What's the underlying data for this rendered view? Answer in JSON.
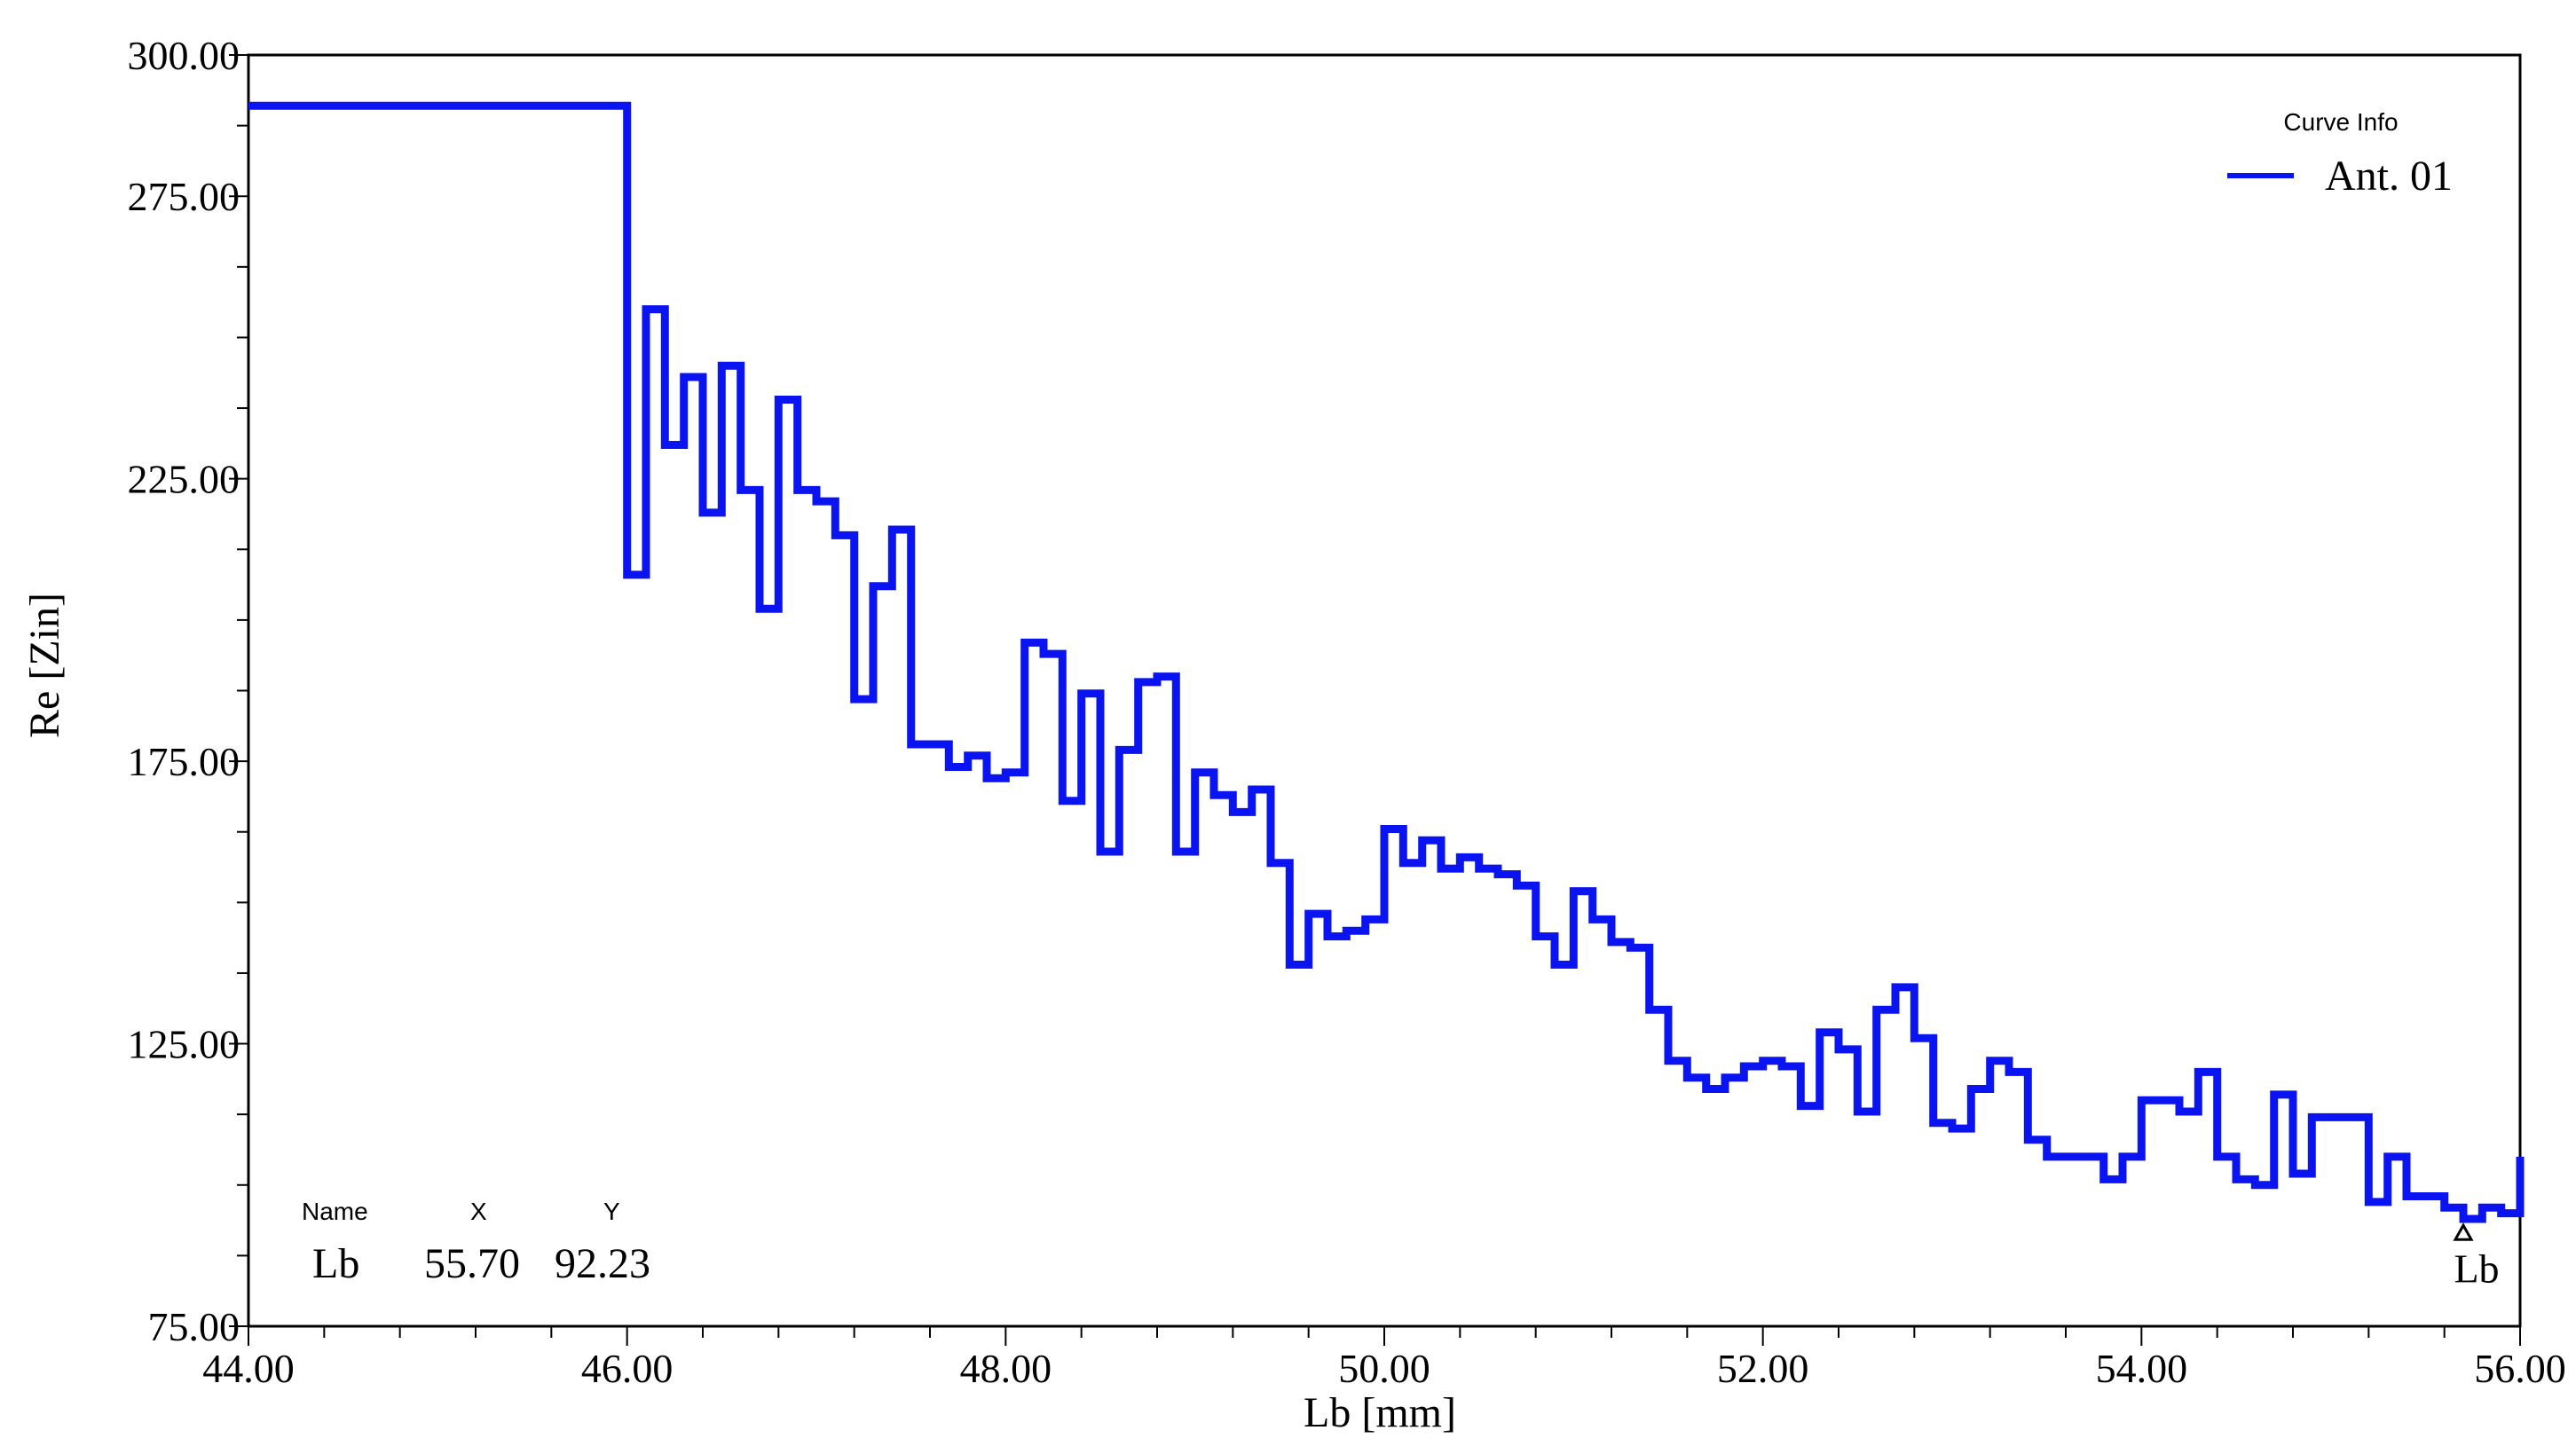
{
  "chart_data": {
    "type": "line",
    "step": true,
    "xlabel": "Lb [mm]",
    "ylabel": "Re [Zin]",
    "xlim": [
      44,
      56
    ],
    "ylim": [
      75,
      300
    ],
    "x_ticks": [
      "44.00",
      "46.00",
      "48.00",
      "50.00",
      "52.00",
      "54.00",
      "56.00"
    ],
    "y_ticks": [
      "75.00",
      "125.00",
      "175.00",
      "225.00",
      "275.00",
      "300.00"
    ],
    "grid": false,
    "legend": {
      "title": "Curve Info",
      "position": "top-right",
      "entries": [
        {
          "name": "Ant. 01",
          "color": "#0a14f0"
        }
      ]
    },
    "series": [
      {
        "name": "Ant. 01",
        "color": "#0a14f0",
        "x": [
          44.0,
          46.0,
          46.1,
          46.2,
          46.3,
          46.4,
          46.5,
          46.6,
          46.7,
          46.8,
          46.9,
          47.0,
          47.1,
          47.2,
          47.3,
          47.4,
          47.5,
          47.6,
          47.7,
          47.8,
          47.9,
          48.0,
          48.1,
          48.2,
          48.3,
          48.4,
          48.5,
          48.6,
          48.7,
          48.8,
          48.9,
          49.0,
          49.1,
          49.2,
          49.3,
          49.4,
          49.5,
          49.6,
          49.7,
          49.8,
          49.9,
          50.0,
          50.1,
          50.2,
          50.3,
          50.4,
          50.5,
          50.6,
          50.7,
          50.8,
          50.9,
          51.0,
          51.1,
          51.2,
          51.3,
          51.4,
          51.5,
          51.6,
          51.7,
          51.8,
          51.9,
          52.0,
          52.1,
          52.2,
          52.3,
          52.4,
          52.5,
          52.6,
          52.7,
          52.8,
          52.9,
          53.0,
          53.1,
          53.2,
          53.3,
          53.4,
          53.5,
          53.6,
          53.7,
          53.8,
          53.9,
          54.0,
          54.1,
          54.2,
          54.3,
          54.4,
          54.5,
          54.6,
          54.7,
          54.8,
          54.9,
          55.0,
          55.1,
          55.2,
          55.3,
          55.4,
          55.5,
          55.6,
          55.7,
          55.8,
          55.9,
          56.0
        ],
        "y": [
          291,
          208,
          255,
          231,
          243,
          219,
          245,
          223,
          202,
          239,
          223,
          221,
          215,
          186,
          206,
          216,
          178,
          178,
          174,
          176,
          172,
          173,
          196,
          194,
          168,
          187,
          159,
          177,
          189,
          190,
          159,
          173,
          169,
          166,
          170,
          157,
          139,
          148,
          144,
          145,
          147,
          163,
          157,
          161,
          156,
          158,
          156,
          155,
          153,
          144,
          139,
          152,
          147,
          143,
          142,
          131,
          122,
          119,
          117,
          119,
          121,
          122,
          121,
          114,
          127,
          124,
          113,
          131,
          135,
          126,
          111,
          110,
          117,
          122,
          120,
          108,
          105,
          105,
          105,
          101,
          105,
          115,
          115,
          113,
          120,
          105,
          101,
          100,
          116,
          102,
          112,
          112,
          112,
          97,
          105,
          98,
          98,
          96,
          94,
          96,
          95,
          105
        ]
      }
    ],
    "marker": {
      "name": "Lb",
      "x": "55.70",
      "y": "92.23",
      "table_headers": {
        "name": "Name",
        "x": "X",
        "y": "Y"
      }
    }
  }
}
